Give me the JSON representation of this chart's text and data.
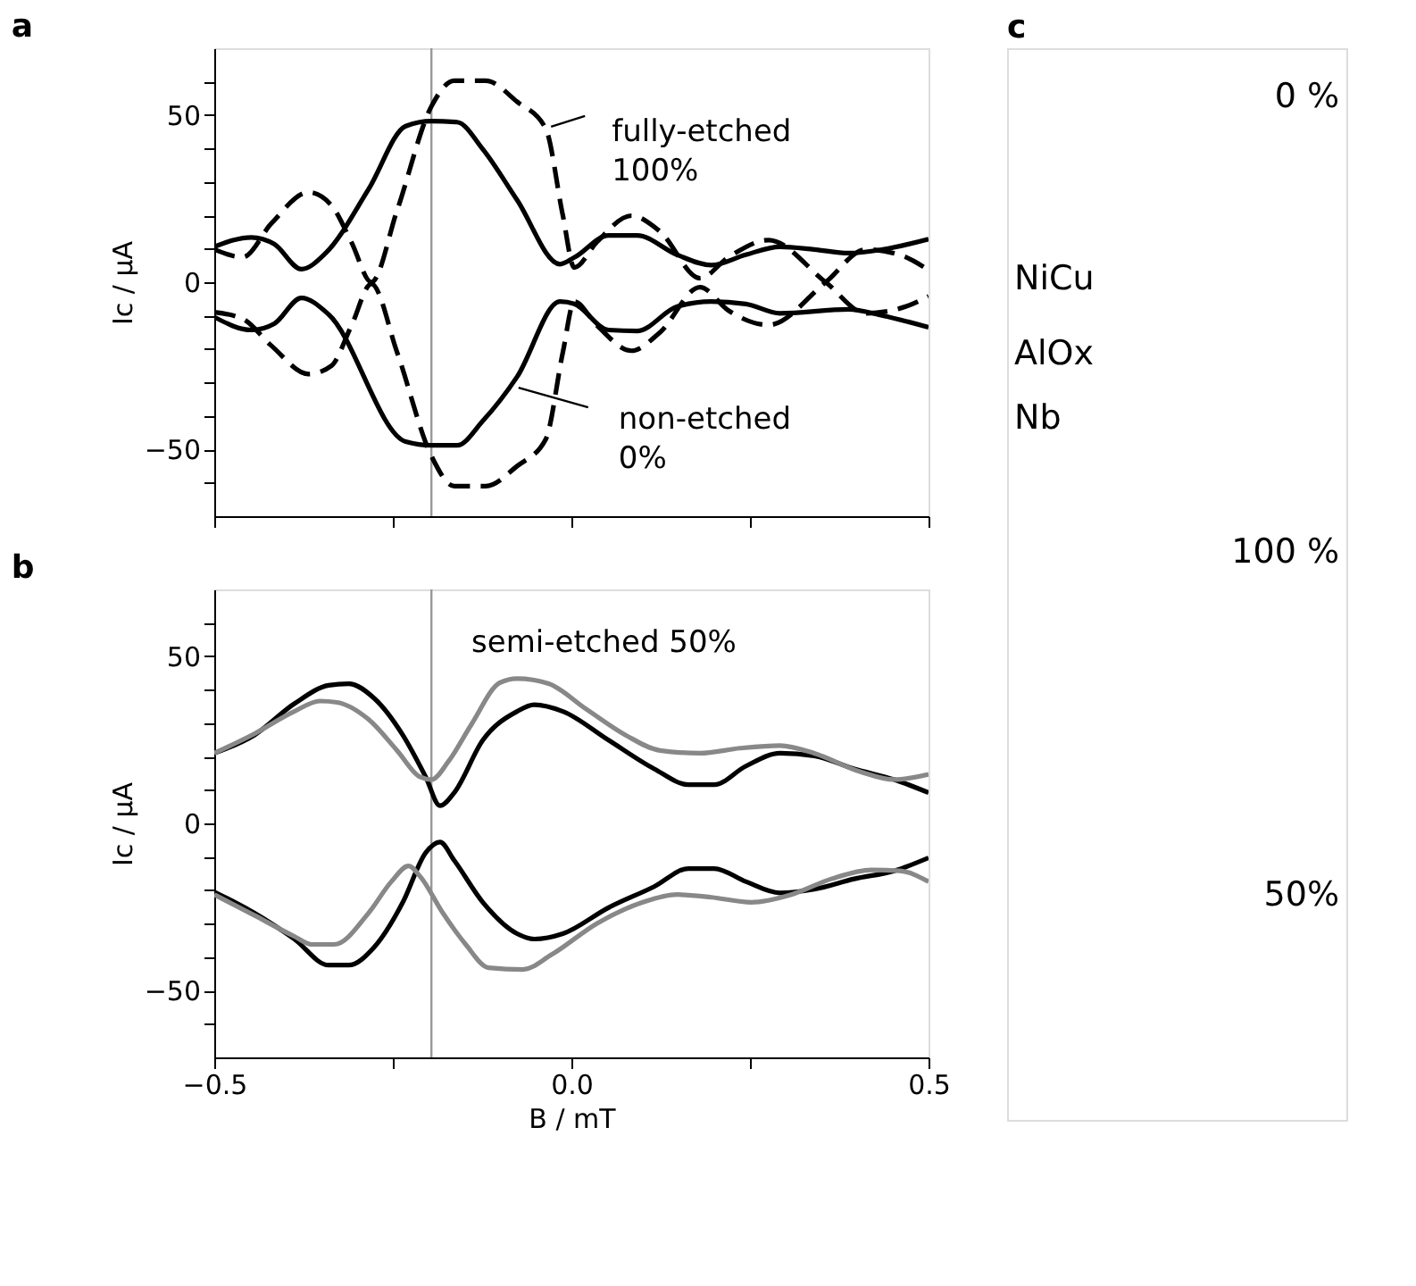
{
  "chart_data": [
    {
      "type": "line",
      "title": "a",
      "ylabel": "Ic / µA",
      "xlim": [
        -0.5,
        0.5
      ],
      "ylim": [
        -70,
        70
      ],
      "tick_labels": "y",
      "xticks": [
        {
          "value": -0.5,
          "label": null
        },
        {
          "value": -0.25,
          "label": null
        },
        {
          "value": 0,
          "label": null
        },
        {
          "value": 0.25,
          "label": null
        },
        {
          "value": 0.5,
          "label": null
        }
      ],
      "yticks": [
        {
          "value": -60,
          "label": null
        },
        {
          "value": -50,
          "label": "−50"
        },
        {
          "value": -40,
          "label": null
        },
        {
          "value": -30,
          "label": null
        },
        {
          "value": -20,
          "label": null
        },
        {
          "value": -10,
          "label": null
        },
        0,
        {
          "value": 10,
          "label": null
        },
        {
          "value": 20,
          "label": null
        },
        {
          "value": 30,
          "label": null
        },
        {
          "value": 40,
          "label": null
        },
        50,
        {
          "value": 60,
          "label": null
        }
      ],
      "series": [
        {
          "color": "#000000",
          "line_style": "solid",
          "x": [
            -0.5,
            -0.448,
            -0.416,
            -0.378,
            -0.344,
            -0.284,
            -0.232,
            -0.196,
            -0.16,
            -0.124,
            -0.076,
            -0.016,
            0.004,
            0.052,
            0.092,
            0.148,
            0.196,
            0.244,
            0.292,
            0.34,
            0.388,
            0.436,
            0.5
          ],
          "values": [
            10.6,
            13.4,
            11.4,
            3.9,
            8.7,
            27.8,
            46.7,
            48.2,
            47.9,
            39.8,
            24.6,
            5.4,
            7.4,
            14.0,
            14.0,
            8.2,
            5.1,
            8.2,
            10.6,
            9.8,
            8.7,
            9.8,
            12.9
          ]
        },
        {
          "color": "#000000",
          "line_style": "solid",
          "x": [
            -0.5,
            -0.448,
            -0.416,
            -0.378,
            -0.34,
            -0.232,
            -0.196,
            -0.16,
            -0.124,
            -0.076,
            -0.016,
            0.004,
            0.052,
            0.092,
            0.148,
            0.196,
            0.244,
            0.292,
            0.388,
            0.436,
            0.5
          ],
          "values": [
            -10.4,
            -14.3,
            -12.4,
            -4.7,
            -9.6,
            -47.7,
            -48.8,
            -48.8,
            -41.5,
            -28.3,
            -5.8,
            -6.5,
            -14.3,
            -14.6,
            -7.3,
            -5.8,
            -6.5,
            -9.3,
            -8.1,
            -10.0,
            -13.5
          ]
        },
        {
          "color": "#000000",
          "line_style": "dashed",
          "x": [
            -0.5,
            -0.46,
            -0.42,
            -0.368,
            -0.336,
            -0.308,
            -0.28,
            -0.244,
            -0.196,
            -0.164,
            -0.12,
            -0.076,
            -0.036,
            -0.012,
            0.004,
            0.036,
            0.084,
            0.124,
            0.18,
            0.22,
            0.276,
            0.356,
            0.412,
            0.468,
            0.5
          ],
          "values": [
            9.8,
            7.5,
            17.6,
            26.9,
            23.0,
            12.0,
            0.0,
            21.5,
            52.6,
            60.3,
            60.3,
            54.0,
            46.0,
            20.0,
            4.4,
            12.1,
            19.9,
            15.2,
            1.2,
            7.5,
            12.6,
            0.0,
            -9.3,
            -7.3,
            -4.2
          ]
        },
        {
          "color": "#000000",
          "line_style": "dashed",
          "x": [
            -0.5,
            -0.46,
            -0.42,
            -0.368,
            -0.336,
            -0.308,
            -0.28,
            -0.244,
            -0.196,
            -0.164,
            -0.12,
            -0.076,
            -0.036,
            -0.012,
            0.004,
            0.036,
            0.084,
            0.124,
            0.18,
            0.22,
            0.276,
            0.356,
            0.412,
            0.468,
            0.5
          ],
          "values": [
            -9.0,
            -11.0,
            -19.0,
            -27.5,
            -25.0,
            -13.0,
            -0.5,
            -21.0,
            -52.0,
            -61.0,
            -61.0,
            -55.0,
            -47.0,
            -21.0,
            -5.8,
            -13.0,
            -20.5,
            -15.0,
            -1.5,
            -8.5,
            -12.8,
            0.0,
            9.8,
            7.5,
            3.6
          ]
        }
      ],
      "ref_lines": [
        {
          "axis": "x",
          "value": -0.196,
          "color": "#999999"
        }
      ],
      "annotations": [
        {
          "text": "fully-etched\n100%",
          "x": -0.036,
          "y": 46.0
        },
        {
          "text": "non-etched\n0%",
          "x": -0.084,
          "y": -30.5
        }
      ]
    },
    {
      "type": "line",
      "title": "b",
      "xlabel": "B / mT",
      "ylabel": "Ic / µA",
      "xlim": [
        -0.5,
        0.5
      ],
      "ylim": [
        -70,
        70
      ],
      "xticks": [
        {
          "value": -0.5,
          "label": "−0.5"
        },
        {
          "value": -0.25,
          "label": null
        },
        {
          "value": 0,
          "label": "0.0"
        },
        {
          "value": 0.25,
          "label": null
        },
        {
          "value": 0.5,
          "label": "0.5"
        }
      ],
      "yticks": [
        {
          "value": -60,
          "label": null
        },
        {
          "value": -50,
          "label": "−50"
        },
        {
          "value": -40,
          "label": null
        },
        {
          "value": -30,
          "label": null
        },
        {
          "value": -20,
          "label": null
        },
        {
          "value": -10,
          "label": null
        },
        0,
        {
          "value": 10,
          "label": null
        },
        {
          "value": 20,
          "label": null
        },
        {
          "value": 30,
          "label": null
        },
        {
          "value": 40,
          "label": null
        },
        50,
        {
          "value": 60,
          "label": null
        }
      ],
      "series": [
        {
          "color": "#000000",
          "line_style": "solid",
          "x": [
            -0.5,
            -0.444,
            -0.388,
            -0.34,
            -0.312,
            -0.276,
            -0.236,
            -0.204,
            -0.184,
            -0.164,
            -0.124,
            -0.076,
            -0.052,
            -0.012,
            0.052,
            0.116,
            0.164,
            0.2,
            0.244,
            0.292,
            0.34,
            0.396,
            0.452,
            0.5
          ],
          "values": [
            21.0,
            26.4,
            35.8,
            41.3,
            41.8,
            37.4,
            26.4,
            13.9,
            5.3,
            9.2,
            24.9,
            33.5,
            35.5,
            33.5,
            24.9,
            16.3,
            11.6,
            11.6,
            17.1,
            21.0,
            20.2,
            16.3,
            13.1,
            9.2
          ]
        },
        {
          "color": "#000000",
          "line_style": "solid",
          "x": [
            -0.5,
            -0.444,
            -0.388,
            -0.34,
            -0.312,
            -0.276,
            -0.236,
            -0.204,
            -0.184,
            -0.164,
            -0.124,
            -0.076,
            -0.052,
            -0.012,
            0.052,
            0.116,
            0.164,
            0.2,
            0.244,
            0.292,
            0.34,
            0.396,
            0.452,
            0.5
          ],
          "values": [
            -20.5,
            -26.8,
            -34.6,
            -42.4,
            -42.4,
            -37.0,
            -23.6,
            -8.8,
            -5.6,
            -11.1,
            -23.6,
            -33.0,
            -34.6,
            -33.0,
            -25.2,
            -18.9,
            -13.5,
            -13.5,
            -17.4,
            -20.8,
            -19.7,
            -16.6,
            -14.2,
            -10.3
          ]
        },
        {
          "color": "#888888",
          "line_style": "solid",
          "x": [
            -0.5,
            -0.444,
            -0.388,
            -0.352,
            -0.328,
            -0.284,
            -0.244,
            -0.212,
            -0.196,
            -0.172,
            -0.14,
            -0.1,
            -0.076,
            -0.032,
            0.02,
            0.076,
            0.124,
            0.18,
            0.236,
            0.292,
            0.34,
            0.404,
            0.452,
            0.5
          ],
          "values": [
            21.0,
            26.8,
            33.5,
            36.6,
            36.2,
            31.1,
            21.8,
            13.9,
            13.1,
            18.6,
            29.6,
            42.1,
            43.3,
            41.8,
            34.3,
            26.4,
            21.8,
            21.0,
            22.5,
            23.3,
            21.0,
            15.5,
            13.1,
            14.7
          ]
        },
        {
          "color": "#888888",
          "line_style": "solid",
          "x": [
            -0.5,
            -0.444,
            -0.388,
            -0.364,
            -0.332,
            -0.284,
            -0.252,
            -0.228,
            -0.212,
            -0.18,
            -0.148,
            -0.116,
            -0.068,
            -0.028,
            0.036,
            0.1,
            0.148,
            0.196,
            0.252,
            0.308,
            0.364,
            0.42,
            0.46,
            0.5
          ],
          "values": [
            -21.3,
            -27.5,
            -33.8,
            -36.2,
            -36.2,
            -26.8,
            -17.4,
            -12.7,
            -15.8,
            -26.8,
            -36.2,
            -43.2,
            -43.7,
            -39.3,
            -29.9,
            -23.6,
            -21.3,
            -22.1,
            -23.6,
            -21.3,
            -16.6,
            -13.9,
            -14.2,
            -17.4
          ]
        }
      ],
      "ref_lines": [
        {
          "axis": "x",
          "value": -0.196,
          "color": "#999999"
        }
      ],
      "annotations": [
        "semi-etched 50%"
      ]
    },
    {
      "type": "other",
      "title": "c",
      "annotations": [
        "0 %",
        "NiCu",
        "AlOx",
        "Nb",
        "100 %",
        "50%"
      ]
    }
  ]
}
